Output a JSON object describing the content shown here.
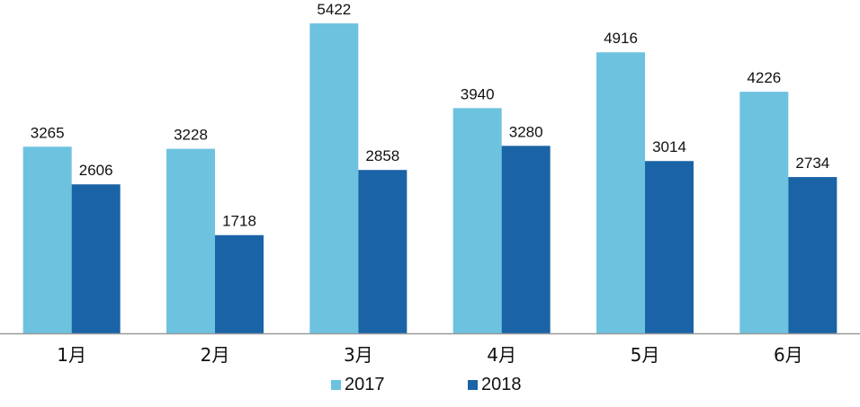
{
  "chart_data": {
    "type": "bar",
    "title": "",
    "xlabel": "",
    "ylabel": "",
    "categories": [
      "1月",
      "2月",
      "3月",
      "4月",
      "5月",
      "6月"
    ],
    "series": [
      {
        "name": "2017",
        "color": "#6DC2E0",
        "values": [
          3265,
          3228,
          5422,
          3940,
          4916,
          4226
        ]
      },
      {
        "name": "2018",
        "color": "#1A63A6",
        "values": [
          2606,
          1718,
          2858,
          3280,
          3014,
          2734
        ]
      }
    ],
    "ylim": [
      0,
      5800
    ],
    "grid": false,
    "y_axis_visible": false,
    "data_labels": true,
    "legend_position": "bottom"
  }
}
